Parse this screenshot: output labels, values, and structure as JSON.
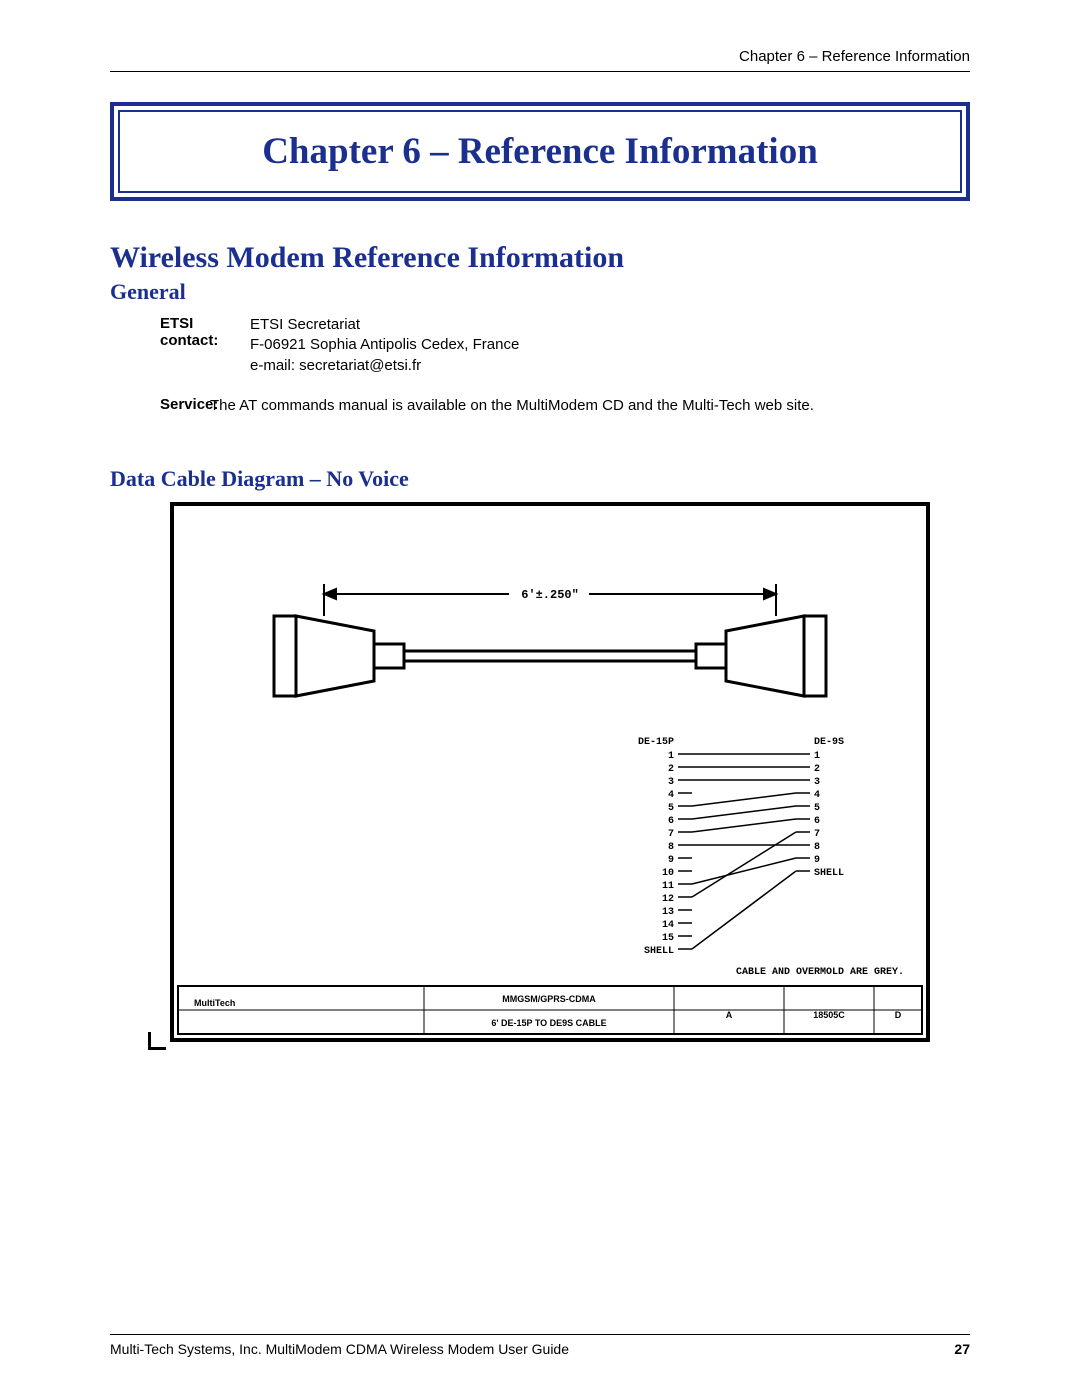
{
  "header": {
    "chapter_ref": "Chapter 6 – Reference Information"
  },
  "chapter_box": {
    "title": "Chapter 6 – Reference Information"
  },
  "section": {
    "title": "Wireless Modem Reference Information",
    "general_heading": "General",
    "etsi_label": "ETSI contact:",
    "etsi_line1": "ETSI Secretariat",
    "etsi_line2": "F-06921 Sophia Antipolis Cedex, France",
    "etsi_line3": "e-mail: secretariat@etsi.fr",
    "service_label": "Service:",
    "service_text": "The AT commands manual is available on the MultiModem CD and the Multi-Tech web site.",
    "diagram_heading": "Data Cable Diagram – No Voice"
  },
  "diagram": {
    "length_label": "6'±.250\"",
    "left_conn_label": "DE-15P",
    "right_conn_label": "DE-9S",
    "left_pins": [
      "1",
      "2",
      "3",
      "4",
      "5",
      "6",
      "7",
      "8",
      "9",
      "10",
      "11",
      "12",
      "13",
      "14",
      "15",
      "SHELL"
    ],
    "right_pins": [
      "1",
      "2",
      "3",
      "4",
      "5",
      "6",
      "7",
      "8",
      "9",
      "SHELL"
    ],
    "note": "CABLE AND OVERMOLD ARE GREY.",
    "pin_connections": [
      [
        1,
        1
      ],
      [
        2,
        2
      ],
      [
        3,
        3
      ],
      [
        5,
        4
      ],
      [
        6,
        5
      ],
      [
        7,
        6
      ],
      [
        12,
        7
      ],
      [
        8,
        8
      ],
      [
        11,
        9
      ],
      [
        16,
        10
      ]
    ],
    "title_block": {
      "company": "MultiTech",
      "drawing_title1": "MMGSM/GPRS-CDMA",
      "drawing_title2": "6' DE-15P TO DE9S CABLE",
      "rev_a": "A",
      "drawing_no": "18505C",
      "rev_d": "D"
    }
  },
  "footer": {
    "text": "Multi-Tech Systems, Inc. MultiModem CDMA Wireless Modem User Guide",
    "page": "27"
  },
  "colors": {
    "brand_blue": "#1b2f8f",
    "text_black": "#000000",
    "page_bg": "#ffffff"
  }
}
